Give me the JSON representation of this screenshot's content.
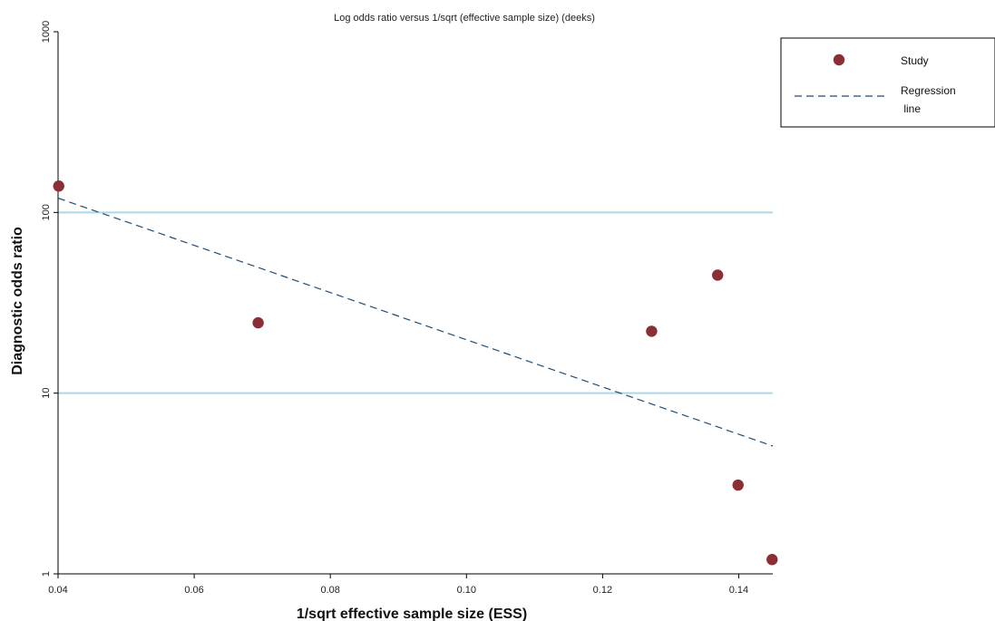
{
  "chart_data": {
    "type": "scatter",
    "title": "Log odds ratio versus 1/sqrt (effective sample size) (deeks)",
    "xlabel": "1/sqrt effective sample size (ESS)",
    "ylabel": "Diagnostic odds ratio",
    "xlim": [
      0.04,
      0.145
    ],
    "ylim": [
      1,
      1000
    ],
    "y_scale": "log",
    "x_ticks": [
      "0.04",
      "0.06",
      "0.08",
      "0.10",
      "0.12",
      "0.14"
    ],
    "x_tick_values": [
      0.04,
      0.06,
      0.08,
      0.1,
      0.12,
      0.14
    ],
    "y_ticks": [
      "1",
      "10",
      "100",
      "1000"
    ],
    "y_tick_values": [
      1,
      10,
      100,
      1000
    ],
    "reference_lines_y": [
      10,
      100
    ],
    "series": [
      {
        "name": "Study",
        "kind": "points",
        "color": "#8b2e35",
        "x": [
          0.0401,
          0.0694,
          0.1272,
          0.1369,
          0.1399,
          0.1449
        ],
        "y": [
          140,
          24.5,
          22,
          45,
          3.1,
          1.2
        ]
      },
      {
        "name": "Regression\n line",
        "kind": "dashed-line",
        "color": "#1f4e79",
        "x": [
          0.04,
          0.145
        ],
        "y": [
          120,
          5.1
        ]
      }
    ],
    "legend": {
      "position": "top-right",
      "entries": [
        "Study",
        "Regression",
        " line"
      ]
    },
    "colors": {
      "points": "#8b2e35",
      "regression": "#1f4e79",
      "reference": "#add8e6"
    }
  }
}
